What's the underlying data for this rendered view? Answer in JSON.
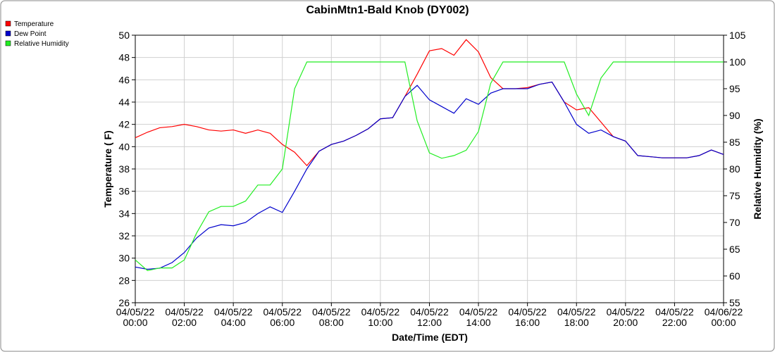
{
  "chart_data": {
    "type": "line",
    "title": "CabinMtn1-Bald Knob (DY002)",
    "x_label": "Date/Time (EDT)",
    "y_label": "Temperature ( F)",
    "y2_label": "Relative Humidity (%)",
    "legend": "top-left",
    "grid": true,
    "x": [
      "04/05/22 00:00",
      "04/05/22 00:30",
      "04/05/22 01:00",
      "04/05/22 01:30",
      "04/05/22 02:00",
      "04/05/22 02:30",
      "04/05/22 03:00",
      "04/05/22 03:30",
      "04/05/22 04:00",
      "04/05/22 04:30",
      "04/05/22 05:00",
      "04/05/22 05:30",
      "04/05/22 06:00",
      "04/05/22 06:30",
      "04/05/22 07:00",
      "04/05/22 07:30",
      "04/05/22 08:00",
      "04/05/22 08:30",
      "04/05/22 09:00",
      "04/05/22 09:30",
      "04/05/22 10:00",
      "04/05/22 10:30",
      "04/05/22 11:00",
      "04/05/22 11:30",
      "04/05/22 12:00",
      "04/05/22 12:30",
      "04/05/22 13:00",
      "04/05/22 13:30",
      "04/05/22 14:00",
      "04/05/22 14:30",
      "04/05/22 15:00",
      "04/05/22 15:30",
      "04/05/22 16:00",
      "04/05/22 16:30",
      "04/05/22 17:00",
      "04/05/22 17:30",
      "04/05/22 18:00",
      "04/05/22 18:30",
      "04/05/22 19:00",
      "04/05/22 19:30",
      "04/05/22 20:00",
      "04/05/22 20:30",
      "04/05/22 21:00",
      "04/05/22 21:30",
      "04/05/22 22:00",
      "04/05/22 22:30",
      "04/05/22 23:00",
      "04/05/22 23:30",
      "04/06/22 00:00"
    ],
    "xlim": [
      "04/05/22 00:00",
      "04/06/22 00:00"
    ],
    "xticks": [
      "04/05/22 00:00",
      "04/05/22 02:00",
      "04/05/22 04:00",
      "04/05/22 06:00",
      "04/05/22 08:00",
      "04/05/22 10:00",
      "04/05/22 12:00",
      "04/05/22 14:00",
      "04/05/22 16:00",
      "04/05/22 18:00",
      "04/05/22 20:00",
      "04/05/22 22:00",
      "04/06/22 00:00"
    ],
    "ylim": [
      26,
      50
    ],
    "yticks": [
      26,
      28,
      30,
      32,
      34,
      36,
      38,
      40,
      42,
      44,
      46,
      48,
      50
    ],
    "y2lim": [
      55,
      105
    ],
    "y2ticks": [
      55,
      60,
      65,
      70,
      75,
      80,
      85,
      90,
      95,
      100,
      105
    ],
    "series": [
      {
        "name": "Temperature",
        "color": "#ff0000",
        "values": [
          40.8,
          41.3,
          41.7,
          41.8,
          42.0,
          41.8,
          41.5,
          41.4,
          41.5,
          41.2,
          41.5,
          41.2,
          40.2,
          39.5,
          38.3,
          39.6,
          40.2,
          40.5,
          41.0,
          41.6,
          42.5,
          42.6,
          44.5,
          46.5,
          48.6,
          48.8,
          48.2,
          49.6,
          48.5,
          46.2,
          45.2,
          45.2,
          45.3,
          45.6,
          45.8,
          44.0,
          43.3,
          43.5,
          42.2,
          40.9,
          40.5,
          39.2,
          39.1,
          39.0,
          39.0,
          39.0,
          39.2,
          39.7,
          39.3
        ]
      },
      {
        "name": "Dew Point",
        "color": "#0000cc",
        "values": [
          29.2,
          29.0,
          29.1,
          29.6,
          30.5,
          31.8,
          32.7,
          33.0,
          32.9,
          33.2,
          34.0,
          34.6,
          34.1,
          36.0,
          38.0,
          39.6,
          40.2,
          40.5,
          41.0,
          41.6,
          42.5,
          42.6,
          44.5,
          45.5,
          44.2,
          43.6,
          43.0,
          44.3,
          43.8,
          44.8,
          45.2,
          45.2,
          45.2,
          45.6,
          45.8,
          44.0,
          42.0,
          41.2,
          41.5,
          40.9,
          40.5,
          39.2,
          39.1,
          39.0,
          39.0,
          39.0,
          39.2,
          39.7,
          39.3
        ]
      },
      {
        "name": "Relative Humidity",
        "color": "#22ee22",
        "axis": "y2",
        "values": [
          63,
          61,
          61.5,
          61.5,
          63,
          68,
          72,
          73,
          73,
          74,
          77,
          77,
          80,
          95,
          100,
          100,
          100,
          100,
          100,
          100,
          100,
          100,
          100,
          89,
          83,
          82,
          82.5,
          83.5,
          87,
          96,
          100,
          100,
          100,
          100,
          100,
          100,
          94,
          90,
          97,
          100,
          100,
          100,
          100,
          100,
          100,
          100,
          100,
          100,
          100
        ]
      }
    ]
  }
}
